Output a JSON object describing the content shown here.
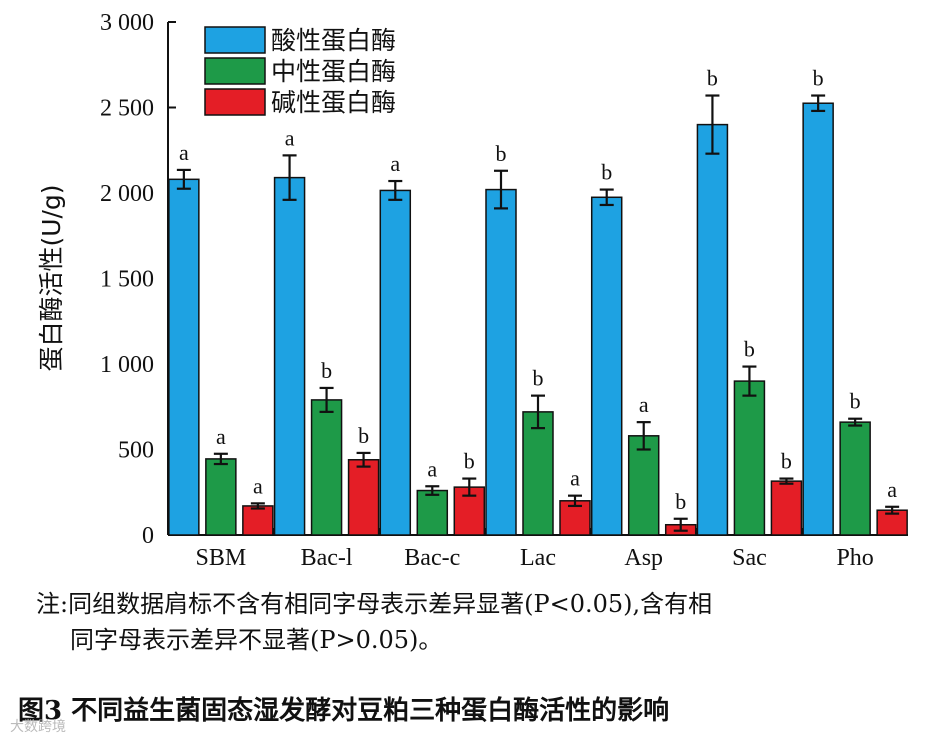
{
  "chart_data": {
    "type": "bar",
    "ylabel": "蛋白酶活性(U/g)",
    "ylim": [
      0,
      3000
    ],
    "yticks": [
      0,
      500,
      1000,
      1500,
      2000,
      2500,
      3000
    ],
    "ytick_labels": [
      "0",
      "500",
      "1 000",
      "1 500",
      "2 000",
      "2 500",
      "3 000"
    ],
    "categories": [
      "SBM",
      "Bac-l",
      "Bac-c",
      "Lac",
      "Asp",
      "Sac",
      "Pho"
    ],
    "legend_position": "top-left",
    "series": [
      {
        "name": "酸性蛋白酶",
        "color": "#1ea2e2",
        "values": [
          2080,
          2090,
          2015,
          2020,
          1975,
          2400,
          2525
        ],
        "errors": [
          55,
          130,
          55,
          110,
          45,
          170,
          45
        ],
        "letters": [
          "a",
          "a",
          "a",
          "b",
          "b",
          "b",
          "b"
        ]
      },
      {
        "name": "中性蛋白酶",
        "color": "#1e9a48",
        "values": [
          445,
          790,
          260,
          720,
          580,
          900,
          660
        ],
        "errors": [
          30,
          70,
          25,
          95,
          80,
          85,
          20
        ],
        "letters": [
          "a",
          "b",
          "a",
          "b",
          "a",
          "b",
          "b"
        ]
      },
      {
        "name": "碱性蛋白酶",
        "color": "#e41e26",
        "values": [
          170,
          440,
          280,
          200,
          60,
          315,
          145
        ],
        "errors": [
          15,
          40,
          50,
          30,
          35,
          15,
          20
        ],
        "letters": [
          "a",
          "b",
          "b",
          "a",
          "b",
          "b",
          "a"
        ]
      }
    ]
  },
  "note": {
    "line1": "注:同组数据肩标不含有相同字母表示差异显著(P<0.05),含有相",
    "line2": "同字母表示差异不显著(P>0.05)。"
  },
  "caption": "图3   不同益生菌固态湿发酵对豆粕三种蛋白酶活性的影响",
  "watermark": "大数跨境"
}
